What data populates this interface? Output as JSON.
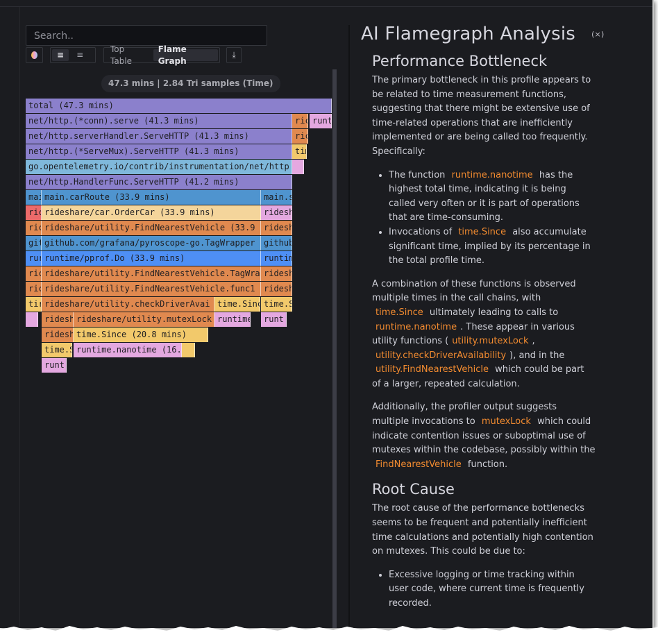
{
  "search": {
    "placeholder": "Search.."
  },
  "toolbar": {
    "color_scheme_icon": "color-circle-icon",
    "align_left_icon": "align-left-icon",
    "align_right_icon": "align-right-icon",
    "top_table_label": "Top Table",
    "flame_graph_label": "Flame Graph",
    "export_icon": "download-icon"
  },
  "summary": "47.3 mins | 2.84 Tri samples (Time)",
  "colors": {
    "purple": "#8b80cc",
    "orange": "#e0894f",
    "yellow": "#f2c96b",
    "pink": "#e4a8e0",
    "lightblue": "#7fb8db",
    "blue": "#4f94cf",
    "brightblue": "#4e8ff5",
    "red": "#ec6a6a",
    "cream": "#f4d59b",
    "accent": "#f28b30"
  },
  "flamegraph": {
    "frames": [
      {
        "label": "total (47.3 mins)",
        "color": "purple"
      },
      {
        "label": "net/http.(*conn).serve (41.3 mins)",
        "color": "purple"
      },
      {
        "label": "ric",
        "color": "orange"
      },
      {
        "label": "runt",
        "color": "pink"
      },
      {
        "label": "net/http.serverHandler.ServeHTTP (41.3 mins)",
        "color": "purple"
      },
      {
        "label": "ric",
        "color": "orange"
      },
      {
        "label": "net/http.(*ServeMux).ServeHTTP (41.3 mins)",
        "color": "purple"
      },
      {
        "label": "tim",
        "color": "yellow"
      },
      {
        "label": "go.opentelemetry.io/contrib/instrumentation/net/http",
        "color": "lightblue"
      },
      {
        "label": "",
        "color": "pink"
      },
      {
        "label": "net/http.HandlerFunc.ServeHTTP (41.2 mins)",
        "color": "purple"
      },
      {
        "label": "mai",
        "color": "blue"
      },
      {
        "label": "main.carRoute (33.9 mins)",
        "color": "blue"
      },
      {
        "label": "main.s",
        "color": "blue"
      },
      {
        "label": "ric",
        "color": "red"
      },
      {
        "label": "rideshare/car.OrderCar (33.9 mins)",
        "color": "cream"
      },
      {
        "label": "ridesh",
        "color": "pink"
      },
      {
        "label": "ric",
        "color": "orange"
      },
      {
        "label": "rideshare/utility.FindNearestVehicle (33.9",
        "color": "orange"
      },
      {
        "label": "ridesh",
        "color": "orange"
      },
      {
        "label": "git",
        "color": "blue"
      },
      {
        "label": "github.com/grafana/pyroscope-go.TagWrapper",
        "color": "blue"
      },
      {
        "label": "github",
        "color": "blue"
      },
      {
        "label": "rur",
        "color": "brightblue"
      },
      {
        "label": "runtime/pprof.Do (33.9 mins)",
        "color": "brightblue"
      },
      {
        "label": "runtim",
        "color": "brightblue"
      },
      {
        "label": "ric",
        "color": "orange"
      },
      {
        "label": "rideshare/utility.FindNearestVehicle.TagWra",
        "color": "orange"
      },
      {
        "label": "ridesh",
        "color": "orange"
      },
      {
        "label": "ric",
        "color": "orange"
      },
      {
        "label": "rideshare/utility.FindNearestVehicle.func1",
        "color": "orange"
      },
      {
        "label": "ridesh",
        "color": "orange"
      },
      {
        "label": "tir",
        "color": "yellow"
      },
      {
        "label": "rideshare/utility.checkDriverAvai",
        "color": "orange"
      },
      {
        "label": "time.Sinc",
        "color": "yellow"
      },
      {
        "label": "time.S",
        "color": "yellow"
      },
      {
        "label": "",
        "color": "pink"
      },
      {
        "label": "ridesh",
        "color": "orange"
      },
      {
        "label": "rideshare/utility.mutexLock",
        "color": "orange"
      },
      {
        "label": "runtime",
        "color": "pink"
      },
      {
        "label": "runt",
        "color": "pink"
      },
      {
        "label": "ridesh",
        "color": "orange"
      },
      {
        "label": "time.Since (20.8 mins)",
        "color": "yellow"
      },
      {
        "label": "time.S",
        "color": "yellow"
      },
      {
        "label": "runtime.nanotime (16.",
        "color": "pink"
      },
      {
        "label": "",
        "color": "yellow"
      },
      {
        "label": "runt",
        "color": "pink"
      }
    ]
  },
  "analysis": {
    "title": "AI Flamegraph Analysis",
    "close_icon": "close-icon",
    "bottleneck": {
      "heading": "Performance Bottleneck",
      "intro": "The primary bottleneck in this profile appears to be related to time measurement functions, suggesting that there might be extensive use of time-related operations that are inefficiently implemented or are being called too frequently. Specifically:",
      "b1_pre": "The function",
      "b1_code": "runtime.nanotime",
      "b1_post": "has the highest total time, indicating it is being called very often or it is part of operations that are time-consuming.",
      "b2_pre": "Invocations of",
      "b2_code": "time.Since",
      "b2_post": "also accumulate significant time, implied by its percentage in the total profile time.",
      "p2_a": "A combination of these functions is observed multiple times in the call chains, with",
      "p2_c1": "time.Since",
      "p2_b": "ultimately leading to calls to",
      "p2_c2": "runtime.nanotime",
      "p2_d": ". These appear in various utility functions (",
      "p2_c3": "utility.mutexLock",
      "p2_e": ",",
      "p2_c4": "utility.checkDriverAvailability",
      "p2_f": "), and in the",
      "p2_c5": "utility.FindNearestVehicle",
      "p2_g": "which could be part of a larger, repeated calculation.",
      "p3_a": "Additionally, the profiler output suggests multiple invocations to",
      "p3_c1": "mutexLock",
      "p3_b": "which could indicate contention issues or suboptimal use of mutexes within the codebase, possibly within the",
      "p3_c2": "FindNearestVehicle",
      "p3_c": "function."
    },
    "root_cause": {
      "heading": "Root Cause",
      "intro": "The root cause of the performance bottlenecks seems to be frequent and potentially inefficient time calculations and potentially high contention on mutexes. This could be due to:",
      "b1": "Excessive logging or time tracking within user code, where current time is frequently recorded."
    }
  }
}
